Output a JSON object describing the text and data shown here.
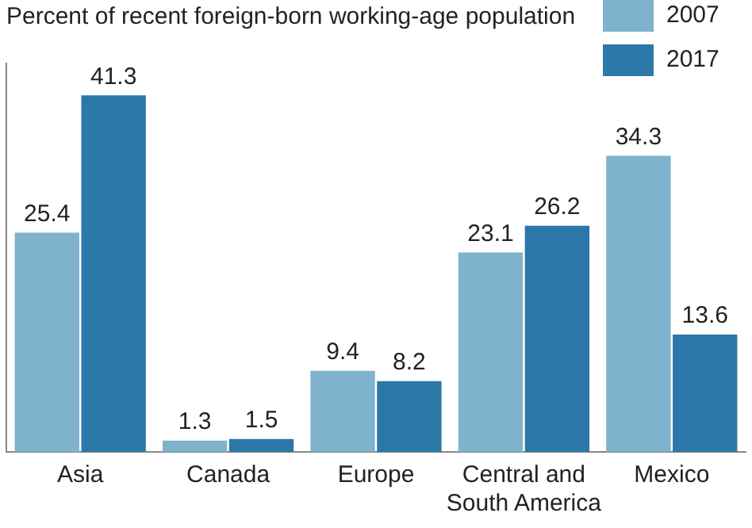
{
  "chart_data": {
    "type": "bar",
    "title": "Percent of recent foreign-born working-age population",
    "categories": [
      "Asia",
      "Canada",
      "Europe",
      "Central and South America",
      "Mexico"
    ],
    "series": [
      {
        "name": "2007",
        "color": "#7fb2cc",
        "values": [
          25.4,
          1.3,
          9.4,
          23.1,
          34.3
        ]
      },
      {
        "name": "2017",
        "color": "#2b78a9",
        "values": [
          41.3,
          1.5,
          8.2,
          26.2,
          13.6
        ]
      }
    ],
    "data_labels": true,
    "legend": "top right",
    "grid": false,
    "tick_labels": "x"
  }
}
